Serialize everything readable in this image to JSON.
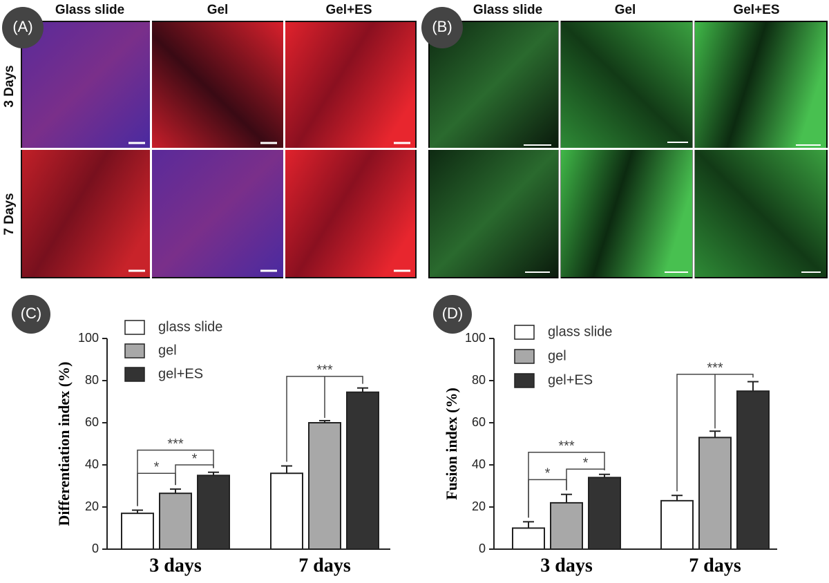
{
  "panels": [
    {
      "label": "(A)",
      "columns": [
        "Glass slide",
        "Gel",
        "Gel+ES"
      ],
      "rows": [
        "3 Days",
        "7 Days"
      ]
    },
    {
      "label": "(B)",
      "columns": [
        "Glass slide",
        "Gel",
        "Gel+ES"
      ]
    }
  ],
  "chart_data": [
    {
      "type": "bar",
      "label": "(C)",
      "y_label": "Differentiation index (%)",
      "categories": [
        "3 days",
        "7 days"
      ],
      "series": [
        {
          "name": "glass slide",
          "color": "#ffffff",
          "values": [
            17,
            36
          ],
          "errors": [
            1.5,
            3.5
          ]
        },
        {
          "name": "gel",
          "color": "#a8a8a8",
          "values": [
            26.5,
            60
          ],
          "errors": [
            2,
            1
          ]
        },
        {
          "name": "gel+ES",
          "color": "#333333",
          "values": [
            35,
            74.5
          ],
          "errors": [
            1.5,
            2
          ]
        }
      ],
      "ylim": [
        0,
        100
      ],
      "yticks": [
        0,
        20,
        40,
        60,
        80,
        100
      ],
      "annotations": [
        "*",
        "*",
        "***",
        "***"
      ]
    },
    {
      "type": "bar",
      "label": "(D)",
      "y_label": "Fusion index (%)",
      "categories": [
        "3 days",
        "7 days"
      ],
      "series": [
        {
          "name": "glass slide",
          "color": "#ffffff",
          "values": [
            10,
            23
          ],
          "errors": [
            3,
            2.5
          ]
        },
        {
          "name": "gel",
          "color": "#a8a8a8",
          "values": [
            22,
            53
          ],
          "errors": [
            4,
            3
          ]
        },
        {
          "name": "gel+ES",
          "color": "#333333",
          "values": [
            34,
            75
          ],
          "errors": [
            1.5,
            4.5
          ]
        }
      ],
      "ylim": [
        0,
        100
      ],
      "yticks": [
        0,
        20,
        40,
        60,
        80,
        100
      ],
      "annotations": [
        "*",
        "*",
        "***",
        "***"
      ]
    }
  ]
}
